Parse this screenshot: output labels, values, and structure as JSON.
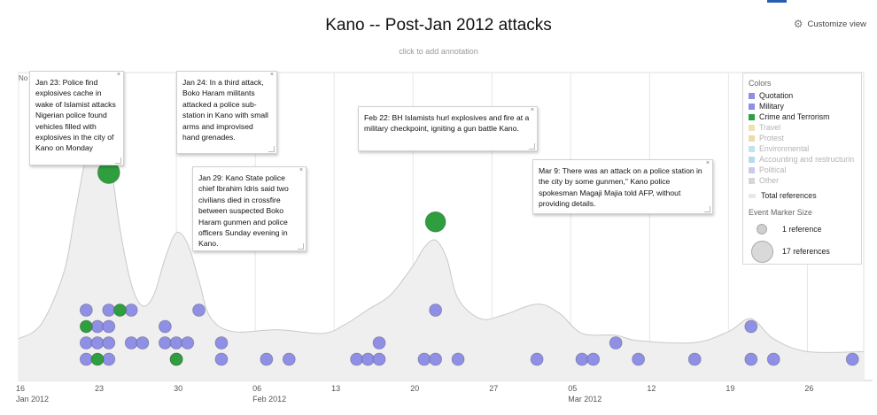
{
  "header": {
    "title": "Kano -- Post-Jan 2012 attacks",
    "subtitle": "click to add annotation",
    "customize_label": "Customize view"
  },
  "legend": {
    "colors_label": "Colors",
    "items": [
      {
        "label": "Quotation",
        "color": "#8f8fe6",
        "active": true
      },
      {
        "label": "Military",
        "color": "#8f8fe6",
        "active": true
      },
      {
        "label": "Crime and Terrorism",
        "color": "#2e9e3e",
        "active": true
      },
      {
        "label": "Travel",
        "color": "#f0e2b0",
        "active": false
      },
      {
        "label": "Protest",
        "color": "#f0d9b0",
        "active": false
      },
      {
        "label": "Environmental",
        "color": "#bfe3f0",
        "active": false
      },
      {
        "label": "Accounting and restructurin",
        "color": "#b9d9f3",
        "active": false
      },
      {
        "label": "Political",
        "color": "#c9cbe8",
        "active": false
      },
      {
        "label": "Other",
        "color": "#d6d6d6",
        "active": false
      }
    ],
    "total_label": "Total references",
    "size_label": "Event Marker Size",
    "size_small_label": "1 reference",
    "size_large_label": "17 references"
  },
  "y_label_fragment": "No",
  "annotations": [
    {
      "text": "Jan 23: Police find explosives cache in wake of Islamist attacks Nigerian police found vehicles filled with explosives in the city of Kano on Monday"
    },
    {
      "text": "Jan 24: In a third attack, Boko Haram militants attacked a police sub-station in Kano with small arms and improvised hand grenades."
    },
    {
      "text": "Jan 29: Kano State police chief Ibrahim Idris said two civilians died in crossfire between suspected Boko Haram gunmen and police officers Sunday evening in Kano."
    },
    {
      "text": "Feb 22: BH Islamists hurl explosives and fire at a military checkpoint, igniting a gun battle Kano."
    },
    {
      "text": "Mar 9: There was an attack on a police station in the city by some gunmen,\" Kano police spokesman Magaji Majia told AFP, without providing details."
    }
  ],
  "chart_data": {
    "type": "scatter",
    "x_axis": {
      "range": [
        "2012-01-16",
        "2012-03-31"
      ],
      "ticks": [
        {
          "date": "2012-01-16",
          "label": "16",
          "sublabel": "Jan 2012"
        },
        {
          "date": "2012-01-23",
          "label": "23",
          "sublabel": ""
        },
        {
          "date": "2012-01-30",
          "label": "30",
          "sublabel": ""
        },
        {
          "date": "2012-02-06",
          "label": "06",
          "sublabel": "Feb 2012"
        },
        {
          "date": "2012-02-13",
          "label": "13",
          "sublabel": ""
        },
        {
          "date": "2012-02-20",
          "label": "20",
          "sublabel": ""
        },
        {
          "date": "2012-02-27",
          "label": "27",
          "sublabel": ""
        },
        {
          "date": "2012-03-05",
          "label": "05",
          "sublabel": "Mar 2012"
        },
        {
          "date": "2012-03-12",
          "label": "12",
          "sublabel": ""
        },
        {
          "date": "2012-03-19",
          "label": "19",
          "sublabel": ""
        },
        {
          "date": "2012-03-26",
          "label": "26",
          "sublabel": ""
        }
      ]
    },
    "total_references_curve": [
      {
        "date": "2012-01-16",
        "value": 0.8
      },
      {
        "date": "2012-01-18",
        "value": 1.2
      },
      {
        "date": "2012-01-20",
        "value": 2.6
      },
      {
        "date": "2012-01-21",
        "value": 4.2
      },
      {
        "date": "2012-01-22",
        "value": 5.8
      },
      {
        "date": "2012-01-23",
        "value": 6.5
      },
      {
        "date": "2012-01-24",
        "value": 5.9
      },
      {
        "date": "2012-01-25",
        "value": 3.8
      },
      {
        "date": "2012-01-26",
        "value": 2.3
      },
      {
        "date": "2012-01-27",
        "value": 1.7
      },
      {
        "date": "2012-01-28",
        "value": 2.0
      },
      {
        "date": "2012-01-29",
        "value": 3.0
      },
      {
        "date": "2012-01-30",
        "value": 3.7
      },
      {
        "date": "2012-01-31",
        "value": 3.4
      },
      {
        "date": "2012-02-01",
        "value": 2.4
      },
      {
        "date": "2012-02-02",
        "value": 1.4
      },
      {
        "date": "2012-02-04",
        "value": 1.0
      },
      {
        "date": "2012-02-08",
        "value": 1.05
      },
      {
        "date": "2012-02-12",
        "value": 0.95
      },
      {
        "date": "2012-02-14",
        "value": 1.2
      },
      {
        "date": "2012-02-16",
        "value": 1.6
      },
      {
        "date": "2012-02-18",
        "value": 2.0
      },
      {
        "date": "2012-02-20",
        "value": 2.8
      },
      {
        "date": "2012-02-21",
        "value": 3.3
      },
      {
        "date": "2012-02-22",
        "value": 3.5
      },
      {
        "date": "2012-02-23",
        "value": 3.0
      },
      {
        "date": "2012-02-24",
        "value": 1.9
      },
      {
        "date": "2012-02-26",
        "value": 1.35
      },
      {
        "date": "2012-02-28",
        "value": 1.45
      },
      {
        "date": "2012-03-02",
        "value": 1.75
      },
      {
        "date": "2012-03-04",
        "value": 1.5
      },
      {
        "date": "2012-03-06",
        "value": 0.95
      },
      {
        "date": "2012-03-09",
        "value": 0.9
      },
      {
        "date": "2012-03-11",
        "value": 0.75
      },
      {
        "date": "2012-03-16",
        "value": 0.7
      },
      {
        "date": "2012-03-19",
        "value": 1.0
      },
      {
        "date": "2012-03-21",
        "value": 1.35
      },
      {
        "date": "2012-03-23",
        "value": 0.8
      },
      {
        "date": "2012-03-26",
        "value": 0.45
      },
      {
        "date": "2012-03-31",
        "value": 0.45
      }
    ],
    "series": [
      {
        "name": "Quotation / Military",
        "color": "#8f8fe6",
        "points": [
          {
            "date": "2012-01-22",
            "level": 1,
            "refs": 1
          },
          {
            "date": "2012-01-22",
            "level": 2,
            "refs": 1
          },
          {
            "date": "2012-01-22",
            "level": 4,
            "refs": 1
          },
          {
            "date": "2012-01-23",
            "level": 2,
            "refs": 1
          },
          {
            "date": "2012-01-23",
            "level": 3,
            "refs": 1
          },
          {
            "date": "2012-01-24",
            "level": 1,
            "refs": 1
          },
          {
            "date": "2012-01-24",
            "level": 2,
            "refs": 1
          },
          {
            "date": "2012-01-24",
            "level": 3,
            "refs": 1
          },
          {
            "date": "2012-01-24",
            "level": 4,
            "refs": 1
          },
          {
            "date": "2012-01-26",
            "level": 2,
            "refs": 1
          },
          {
            "date": "2012-01-26",
            "level": 4,
            "refs": 1
          },
          {
            "date": "2012-01-27",
            "level": 2,
            "refs": 1
          },
          {
            "date": "2012-01-29",
            "level": 2,
            "refs": 1
          },
          {
            "date": "2012-01-29",
            "level": 3,
            "refs": 1
          },
          {
            "date": "2012-01-30",
            "level": 1,
            "refs": 1
          },
          {
            "date": "2012-01-30",
            "level": 2,
            "refs": 1
          },
          {
            "date": "2012-01-31",
            "level": 2,
            "refs": 1
          },
          {
            "date": "2012-02-01",
            "level": 4,
            "refs": 1
          },
          {
            "date": "2012-02-03",
            "level": 1,
            "refs": 1
          },
          {
            "date": "2012-02-03",
            "level": 2,
            "refs": 1
          },
          {
            "date": "2012-02-07",
            "level": 1,
            "refs": 1
          },
          {
            "date": "2012-02-09",
            "level": 1,
            "refs": 1
          },
          {
            "date": "2012-02-15",
            "level": 1,
            "refs": 1
          },
          {
            "date": "2012-02-16",
            "level": 1,
            "refs": 1
          },
          {
            "date": "2012-02-17",
            "level": 1,
            "refs": 1
          },
          {
            "date": "2012-02-17",
            "level": 2,
            "refs": 1
          },
          {
            "date": "2012-02-21",
            "level": 1,
            "refs": 1
          },
          {
            "date": "2012-02-22",
            "level": 1,
            "refs": 1
          },
          {
            "date": "2012-02-22",
            "level": 4,
            "refs": 1
          },
          {
            "date": "2012-02-24",
            "level": 1,
            "refs": 1
          },
          {
            "date": "2012-03-02",
            "level": 1,
            "refs": 1
          },
          {
            "date": "2012-03-06",
            "level": 1,
            "refs": 1
          },
          {
            "date": "2012-03-07",
            "level": 1,
            "refs": 1
          },
          {
            "date": "2012-03-09",
            "level": 2,
            "refs": 1
          },
          {
            "date": "2012-03-11",
            "level": 1,
            "refs": 1
          },
          {
            "date": "2012-03-16",
            "level": 1,
            "refs": 1
          },
          {
            "date": "2012-03-21",
            "level": 1,
            "refs": 1
          },
          {
            "date": "2012-03-21",
            "level": 3,
            "refs": 1
          },
          {
            "date": "2012-03-23",
            "level": 1,
            "refs": 1
          },
          {
            "date": "2012-03-30",
            "level": 1,
            "refs": 1
          }
        ]
      },
      {
        "name": "Crime and Terrorism",
        "color": "#2e9e3e",
        "points": [
          {
            "date": "2012-01-22",
            "level": 3,
            "refs": 1
          },
          {
            "date": "2012-01-23",
            "level": 1,
            "refs": 1
          },
          {
            "date": "2012-01-25",
            "level": 4,
            "refs": 1
          },
          {
            "date": "2012-01-30",
            "level": 1,
            "refs": 1
          },
          {
            "date": "2012-01-24",
            "level": 0,
            "refs": 6,
            "y_value": 5.35
          },
          {
            "date": "2012-02-22",
            "level": 0,
            "refs": 5,
            "y_value": 4.0
          }
        ]
      }
    ]
  }
}
